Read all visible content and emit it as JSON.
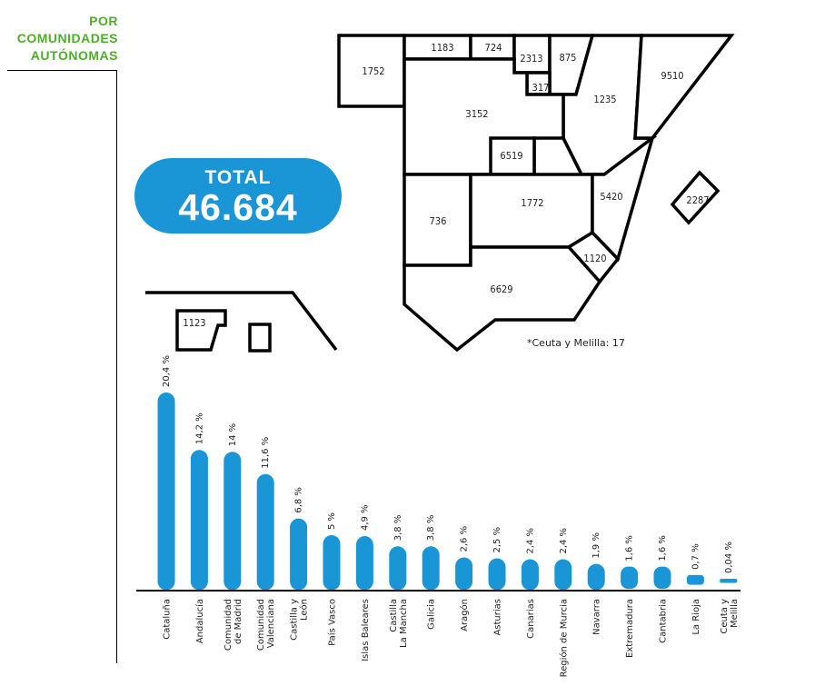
{
  "header": {
    "lines": [
      "POR",
      "COMUNIDADES",
      "AUTÓNOMAS"
    ]
  },
  "total": {
    "label": "TOTAL",
    "value": "46.684"
  },
  "map": {
    "note": "*Ceuta y Melilla: 17",
    "regions": [
      {
        "id": "galicia",
        "value": "1752"
      },
      {
        "id": "asturias",
        "value": "1183"
      },
      {
        "id": "cantabria",
        "value": "724"
      },
      {
        "id": "pais-vasco",
        "value": "2313"
      },
      {
        "id": "navarra",
        "value": "875"
      },
      {
        "id": "la-rioja",
        "value": "317"
      },
      {
        "id": "aragon",
        "value": "1235"
      },
      {
        "id": "cataluna",
        "value": "9510"
      },
      {
        "id": "castilla-y-leon",
        "value": "3152"
      },
      {
        "id": "comunidad-de-madrid",
        "value": "6519"
      },
      {
        "id": "extremadura",
        "value": "736"
      },
      {
        "id": "castilla-la-mancha",
        "value": "1772"
      },
      {
        "id": "comunidad-valenciana",
        "value": "5420"
      },
      {
        "id": "region-de-murcia",
        "value": "1120"
      },
      {
        "id": "andalucia",
        "value": "6629"
      },
      {
        "id": "islas-baleares",
        "value": "2287"
      },
      {
        "id": "canarias",
        "value": "1123"
      }
    ]
  },
  "chart_data": {
    "type": "bar",
    "categories": [
      [
        "Cataluña"
      ],
      [
        "Andalucía"
      ],
      [
        "Comunidad",
        "de Madrid"
      ],
      [
        "Comunidad",
        "Valenciana"
      ],
      [
        "Castilla y",
        "León"
      ],
      [
        "País Vasco"
      ],
      [
        "Islas Baleares"
      ],
      [
        "Castilla",
        "La Mancha"
      ],
      [
        "Galicia"
      ],
      [
        "Aragón"
      ],
      [
        "Asturias"
      ],
      [
        "Canarias"
      ],
      [
        "Región de Murcia"
      ],
      [
        "Navarra"
      ],
      [
        "Extremadura"
      ],
      [
        "Cantabria"
      ],
      [
        "La Rioja"
      ],
      [
        "Ceuta y",
        "Melilla"
      ]
    ],
    "values": [
      20.4,
      14.2,
      14,
      11.6,
      6.8,
      5,
      4.9,
      3.8,
      3.8,
      2.6,
      2.5,
      2.4,
      2.4,
      1.9,
      1.6,
      1.6,
      0.7,
      0.04
    ],
    "value_labels": [
      "20,4 %",
      "14,2 %",
      "14 %",
      "11,6 %",
      "6,8 %",
      "5 %",
      "4,9 %",
      "3,8 %",
      "3,8 %",
      "2,6 %",
      "2,5 %",
      "2,4 %",
      "2,4 %",
      "1,9 %",
      "1,6 %",
      "1,6 %",
      "0,7 %",
      "0,04 %"
    ],
    "ylim": [
      0,
      20.4
    ],
    "grid": false,
    "bar_color": "#1a95d6"
  }
}
